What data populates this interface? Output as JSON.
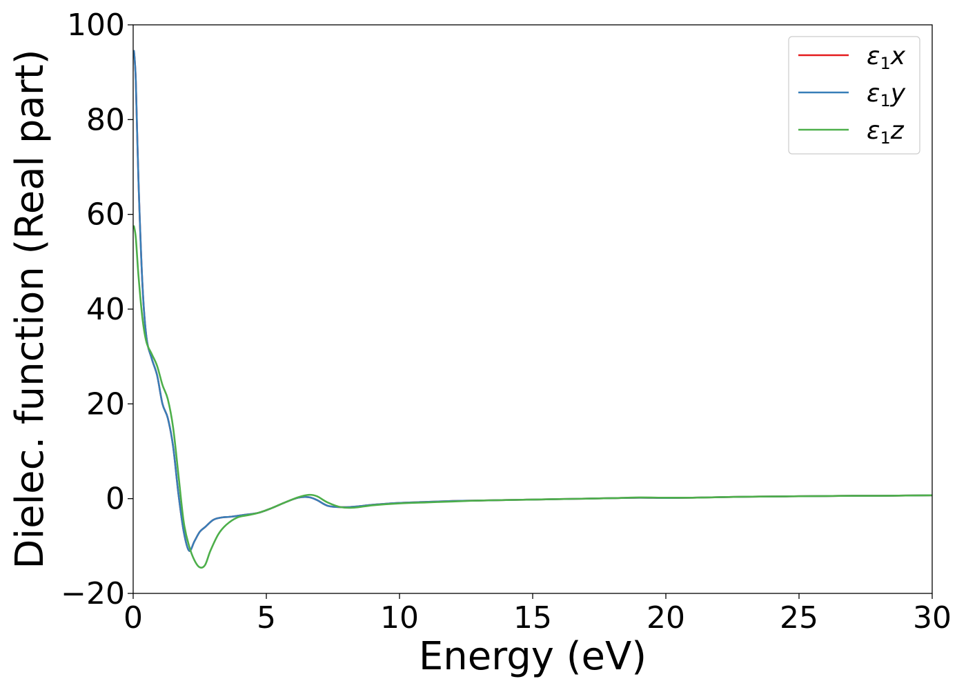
{
  "chart_data": {
    "type": "line",
    "title": "",
    "xlabel": "Energy (eV)",
    "ylabel": "Dielec. function (Real part)",
    "xlim": [
      0,
      30
    ],
    "ylim": [
      -20,
      100
    ],
    "xticks": [
      0,
      5,
      10,
      15,
      20,
      25,
      30
    ],
    "yticks": [
      -20,
      0,
      20,
      40,
      60,
      80,
      100
    ],
    "xtick_labels": [
      "0",
      "5",
      "10",
      "15",
      "20",
      "25",
      "30"
    ],
    "ytick_labels": [
      "−20",
      "0",
      "20",
      "40",
      "60",
      "80",
      "100"
    ],
    "grid": false,
    "legend_position": "top-right",
    "series": [
      {
        "name": "ε1x",
        "legend": {
          "symbol": "ε",
          "sub": "1",
          "var": "x"
        },
        "color": "#e41a1c",
        "x": [
          0.03,
          0.1,
          0.2,
          0.35,
          0.5,
          0.7,
          0.9,
          1.1,
          1.3,
          1.5,
          1.7,
          1.9,
          2.1,
          2.3,
          2.5,
          2.7,
          3.0,
          3.3,
          3.7,
          4.2,
          4.7,
          5.2,
          5.7,
          6.2,
          6.6,
          6.9,
          7.3,
          7.8,
          8.3,
          9.0,
          10.0,
          11.0,
          12.0,
          13.0,
          14.0,
          15.0,
          16.0,
          17.0,
          18.0,
          19.0,
          20.0,
          21.0,
          22.0,
          23.0,
          24.0,
          25.0,
          26.0,
          27.0,
          28.0,
          29.0,
          30.0
        ],
        "values": [
          94.5,
          88,
          67,
          45,
          34,
          29.5,
          26,
          20,
          17,
          11,
          1,
          -7,
          -11,
          -9,
          -7,
          -6,
          -4.5,
          -4,
          -3.8,
          -3.4,
          -3.0,
          -2.0,
          -0.8,
          0.2,
          0.3,
          -0.3,
          -1.5,
          -1.8,
          -1.7,
          -1.3,
          -0.9,
          -0.7,
          -0.5,
          -0.4,
          -0.3,
          -0.2,
          -0.1,
          0.0,
          0.1,
          0.2,
          0.15,
          0.2,
          0.3,
          0.4,
          0.45,
          0.5,
          0.55,
          0.6,
          0.6,
          0.65,
          0.7
        ]
      },
      {
        "name": "ε1y",
        "legend": {
          "symbol": "ε",
          "sub": "1",
          "var": "y"
        },
        "color": "#377eb8",
        "x": [
          0.03,
          0.1,
          0.2,
          0.35,
          0.5,
          0.7,
          0.9,
          1.1,
          1.3,
          1.5,
          1.7,
          1.9,
          2.1,
          2.3,
          2.5,
          2.7,
          3.0,
          3.3,
          3.7,
          4.2,
          4.7,
          5.2,
          5.7,
          6.2,
          6.6,
          6.9,
          7.3,
          7.8,
          8.3,
          9.0,
          10.0,
          11.0,
          12.0,
          13.0,
          14.0,
          15.0,
          16.0,
          17.0,
          18.0,
          19.0,
          20.0,
          21.0,
          22.0,
          23.0,
          24.0,
          25.0,
          26.0,
          27.0,
          28.0,
          29.0,
          30.0
        ],
        "values": [
          94.5,
          88,
          67,
          45,
          34,
          29.5,
          26,
          20,
          17,
          11,
          1,
          -7,
          -11,
          -9,
          -7,
          -6,
          -4.5,
          -4,
          -3.8,
          -3.4,
          -3.0,
          -2.0,
          -0.8,
          0.2,
          0.3,
          -0.3,
          -1.5,
          -1.8,
          -1.7,
          -1.3,
          -0.9,
          -0.7,
          -0.5,
          -0.4,
          -0.3,
          -0.2,
          -0.1,
          0.0,
          0.1,
          0.2,
          0.15,
          0.2,
          0.3,
          0.4,
          0.45,
          0.5,
          0.55,
          0.6,
          0.6,
          0.65,
          0.7
        ]
      },
      {
        "name": "ε1z",
        "legend": {
          "symbol": "ε",
          "sub": "1",
          "var": "z"
        },
        "color": "#4daf4a",
        "x": [
          0.03,
          0.1,
          0.2,
          0.35,
          0.5,
          0.7,
          0.9,
          1.1,
          1.3,
          1.5,
          1.7,
          1.9,
          2.1,
          2.3,
          2.5,
          2.7,
          2.9,
          3.2,
          3.5,
          3.9,
          4.3,
          4.7,
          5.2,
          5.7,
          6.2,
          6.6,
          6.9,
          7.3,
          7.8,
          8.3,
          9.0,
          10.0,
          11.0,
          12.0,
          13.0,
          14.0,
          15.0,
          16.0,
          17.0,
          18.0,
          19.0,
          20.0,
          21.0,
          22.0,
          23.0,
          24.0,
          25.0,
          26.0,
          27.0,
          28.0,
          29.0,
          30.0
        ],
        "values": [
          57.5,
          55,
          47,
          38,
          33,
          30.5,
          28,
          24,
          21,
          15,
          5,
          -5,
          -10,
          -13,
          -14.5,
          -14,
          -11,
          -7.5,
          -5.5,
          -4,
          -3.5,
          -3.0,
          -2.0,
          -0.8,
          0.3,
          0.8,
          0.5,
          -0.8,
          -1.8,
          -1.9,
          -1.4,
          -1.0,
          -0.8,
          -0.6,
          -0.4,
          -0.3,
          -0.2,
          -0.1,
          0.0,
          0.1,
          0.25,
          0.2,
          0.2,
          0.3,
          0.4,
          0.45,
          0.5,
          0.55,
          0.6,
          0.6,
          0.65,
          0.7
        ]
      }
    ]
  }
}
